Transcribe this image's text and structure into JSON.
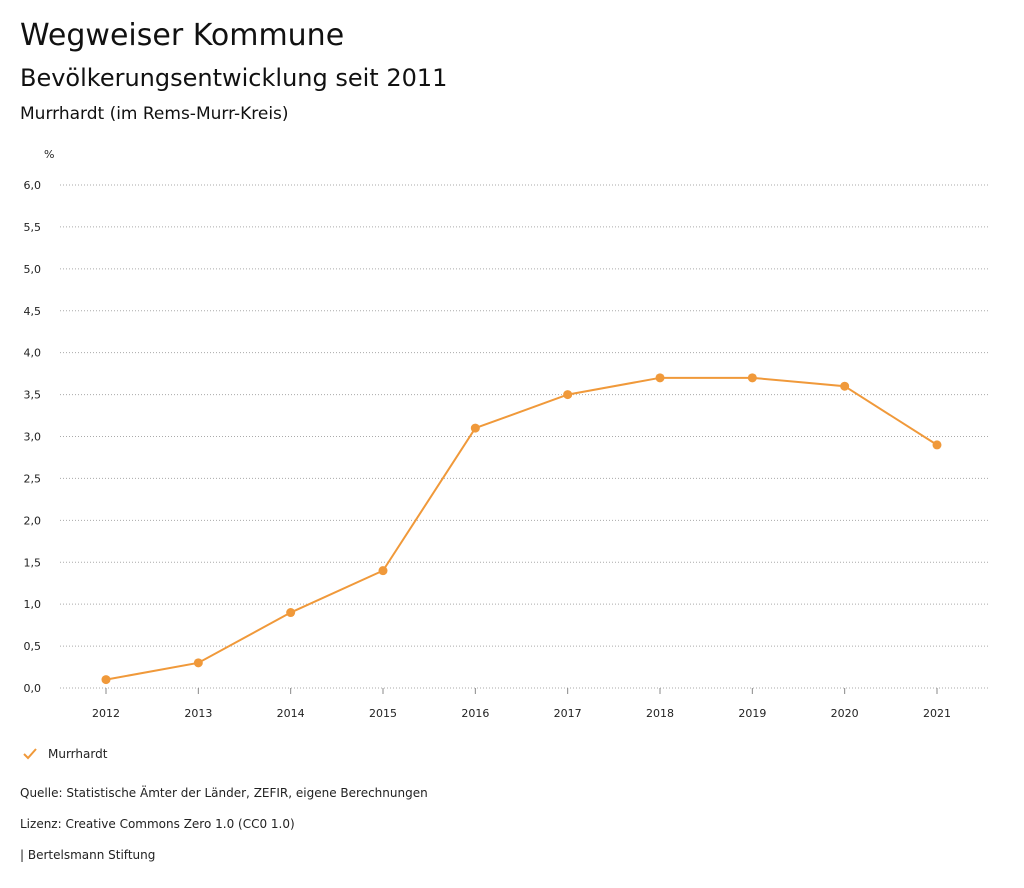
{
  "header": {
    "title": "Wegweiser Kommune",
    "subtitle": "Bevölkerungsentwicklung seit 2011",
    "region": "Murrhardt (im Rems-Murr-Kreis)"
  },
  "chart_data": {
    "type": "line",
    "yunit": "%",
    "ylim": [
      0,
      6
    ],
    "yticks": [
      0.0,
      0.5,
      1.0,
      1.5,
      2.0,
      2.5,
      3.0,
      3.5,
      4.0,
      4.5,
      5.0,
      5.5,
      6.0
    ],
    "ytick_labels": [
      "0,0",
      "0,5",
      "1,0",
      "1,5",
      "2,0",
      "2,5",
      "3,0",
      "3,5",
      "4,0",
      "4,5",
      "5,0",
      "5,5",
      "6,0"
    ],
    "categories": [
      "2012",
      "2013",
      "2014",
      "2015",
      "2016",
      "2017",
      "2018",
      "2019",
      "2020",
      "2021"
    ],
    "series": [
      {
        "name": "Murrhardt",
        "color": "#F0993A",
        "values": [
          0.1,
          0.3,
          0.9,
          1.4,
          3.1,
          3.5,
          3.7,
          3.7,
          3.6,
          2.9
        ]
      }
    ],
    "grid": true,
    "legend_placement": "bottom-left"
  },
  "legend": {
    "label": "Murrhardt",
    "icon": "check-icon"
  },
  "footer": {
    "source": "Quelle: Statistische Ämter der Länder, ZEFIR, eigene Berechnungen",
    "license": "Lizenz: Creative Commons Zero 1.0 (CC0 1.0)",
    "publisher": "| Bertelsmann Stiftung"
  }
}
